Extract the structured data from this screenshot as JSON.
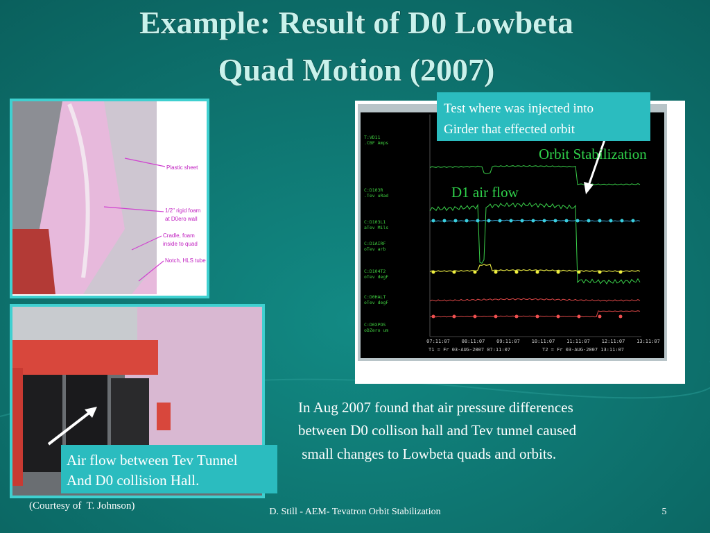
{
  "title": [
    "Example: Result of D0 Lowbeta",
    "Quad Motion (2007)"
  ],
  "photo_top": {
    "annotations": [
      "Plastic sheet",
      "1/2\" rigid foam",
      "at D0ero wall",
      "Cradle, foam",
      "inside  to quad",
      "Notch, HLS tube"
    ]
  },
  "photo_bottom": {
    "callout": [
      "Air flow between Tev Tunnel",
      "And D0 collision Hall."
    ]
  },
  "plot": {
    "callout": [
      "Test where was injected into",
      "Girder that effected orbit"
    ],
    "orbit_label": "Orbit Stabilization",
    "air_label": "D1 air flow",
    "channels": [
      [
        "T:VD11",
        ".CBF    Amps"
      ],
      [
        "C:D103R",
        ".Tev   uRad"
      ],
      [
        "C:D103L1",
        "aTev    Mils"
      ],
      [
        "C:D1AIRF",
        "oTev    arb"
      ],
      [
        "C:D104T2",
        "oTev    degF"
      ],
      [
        "C:D0HALT",
        "oTev    degF"
      ],
      [
        "C:D0XPOS",
        "oDZero  um"
      ]
    ],
    "times": [
      "07:11:07",
      "08:11:07",
      "09:11:07",
      "10:11:07",
      "11:11:07",
      "12:11:07",
      "13:11:07"
    ],
    "t1": "T1 = Fr 03-AUG-2007 07:11:07",
    "t2": "T2 = Fr 03-AUG-2007 13:11:07"
  },
  "body": [
    "In Aug 2007 found that air pressure differences",
    "between D0 collison hall and Tev tunnel caused",
    " small changes to Lowbeta quads and orbits."
  ],
  "courtesy": "(Courtesy of  T. Johnson)",
  "footer": "D. Still - AEM- Tevatron Orbit Stabilization",
  "page": "5"
}
